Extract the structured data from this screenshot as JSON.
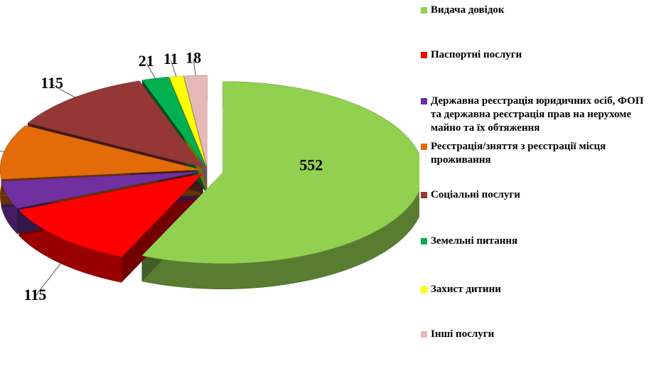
{
  "chart_data": {
    "type": "pie",
    "categories": [
      "Видача довідок",
      "Паспортні послуги",
      "Державна реєстрація юридичних осіб, ФОП та державна реєстрація прав на нерухоме майно та їх обтяження",
      "Реєстрація/зняття з реєстрації місця проживання",
      "Соціальні послуги",
      "Земельні питання",
      "Захист дитини",
      "Інші послуги"
    ],
    "values": [
      552,
      115,
      48,
      95,
      115,
      21,
      11,
      18
    ],
    "colors": [
      "#92d050",
      "#ff0000",
      "#7030a0",
      "#e36c09",
      "#953735",
      "#00b050",
      "#ffff00",
      "#e6b9b8"
    ]
  }
}
